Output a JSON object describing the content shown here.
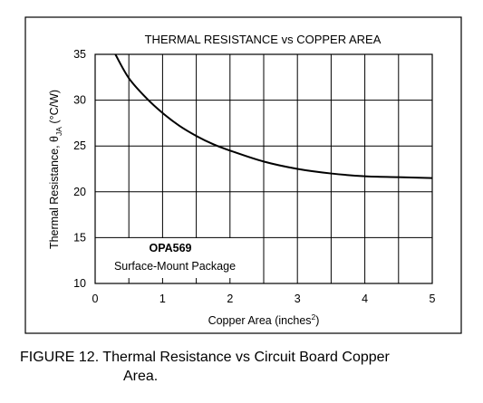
{
  "chart_data": {
    "type": "line",
    "title": "THERMAL RESISTANCE vs COPPER AREA",
    "xlabel": "Copper Area (inches²)",
    "ylabel": "Thermal Resistance, θJA (°C/W)",
    "xlim": [
      0,
      5
    ],
    "ylim": [
      10,
      35
    ],
    "x_ticks": [
      "0",
      "1",
      "2",
      "3",
      "4",
      "5"
    ],
    "y_ticks": [
      "10",
      "15",
      "20",
      "25",
      "30",
      "35"
    ],
    "grid": true,
    "series": [
      {
        "x": [
          0.3,
          0.5,
          0.75,
          1.0,
          1.25,
          1.5,
          1.75,
          2.0,
          2.5,
          3.0,
          3.5,
          4.0,
          4.5,
          5.0
        ],
        "y": [
          35.0,
          32.4,
          30.3,
          28.6,
          27.2,
          26.1,
          25.2,
          24.5,
          23.3,
          22.5,
          22.0,
          21.7,
          21.6,
          21.5
        ]
      }
    ],
    "annotations": [
      "OPA569",
      "Surface-Mount Package"
    ],
    "color": "#000000"
  },
  "caption": {
    "label": "FIGURE 12.",
    "text_line1": "Thermal Resistance vs Circuit Board Copper",
    "text_line2": "Area."
  }
}
